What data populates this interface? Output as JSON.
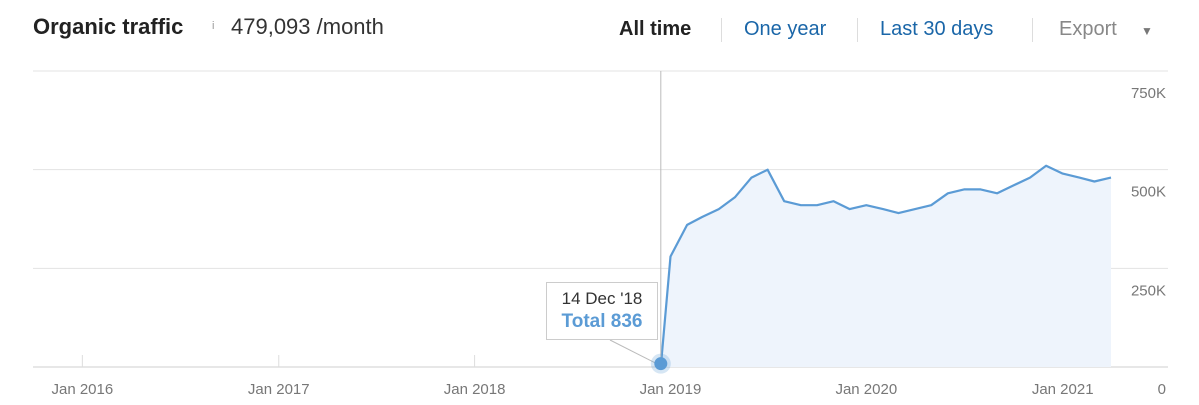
{
  "header": {
    "title": "Organic traffic",
    "info_icon": "i",
    "total_value": "479,093 /month",
    "ranges": [
      "All time",
      "One year",
      "Last 30 days"
    ],
    "active_range": "All time",
    "export_label": "Export",
    "export_caret": "▼"
  },
  "tooltip": {
    "date": "14 Dec '18",
    "total": "Total 836"
  },
  "colors": {
    "line": "#5b9bd5",
    "area": "#eef4fc",
    "link": "#1a66a8",
    "grid": "#e3e3e3"
  },
  "chart_data": {
    "type": "area",
    "title": "Organic traffic",
    "x_ticks": [
      "Jan 2016",
      "Jan 2017",
      "Jan 2018",
      "Jan 2019",
      "Jan 2020",
      "Jan 2021"
    ],
    "y_ticks": [
      "0",
      "250K",
      "500K",
      "750K"
    ],
    "ylim": [
      0,
      750000
    ],
    "grid": true,
    "series": [
      {
        "name": "Organic traffic",
        "x": [
          "2015-10",
          "2018-12-14",
          "2019-01",
          "2019-02",
          "2019-03",
          "2019-04",
          "2019-05",
          "2019-06",
          "2019-07",
          "2019-08",
          "2019-09",
          "2019-10",
          "2019-11",
          "2019-12",
          "2020-01",
          "2020-02",
          "2020-03",
          "2020-04",
          "2020-05",
          "2020-06",
          "2020-07",
          "2020-08",
          "2020-09",
          "2020-10",
          "2020-11",
          "2020-12",
          "2021-01",
          "2021-02",
          "2021-03",
          "2021-04"
        ],
        "values": [
          0,
          836,
          280000,
          360000,
          380000,
          400000,
          430000,
          480000,
          500000,
          420000,
          410000,
          410000,
          420000,
          400000,
          410000,
          400000,
          390000,
          400000,
          410000,
          440000,
          450000,
          450000,
          440000,
          460000,
          480000,
          510000,
          490000,
          480000,
          470000,
          480000
        ]
      }
    ]
  }
}
